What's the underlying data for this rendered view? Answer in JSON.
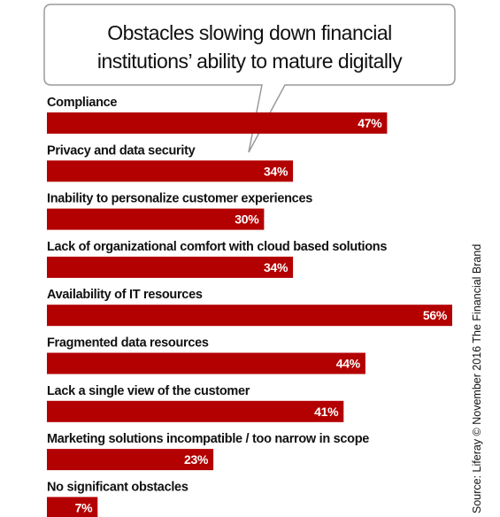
{
  "chart_data": {
    "type": "bar",
    "orientation": "horizontal",
    "title": "Obstacles slowing down financial institutions’ ability to mature digitally",
    "title_lines": [
      "Obstacles slowing down financial",
      "institutions’ ability to mature digitally"
    ],
    "categories": [
      "Compliance",
      "Privacy and data security",
      "Inability to personalize customer experiences",
      "Lack of organizational comfort with cloud based solutions",
      "Availability of IT resources",
      "Fragmented data resources",
      "Lack a single view of the customer",
      "Marketing solutions incompatible / too narrow in scope",
      "No significant obstacles"
    ],
    "values": [
      47,
      34,
      30,
      34,
      56,
      44,
      41,
      23,
      7
    ],
    "value_labels": [
      "47%",
      "34%",
      "30%",
      "34%",
      "56%",
      "44%",
      "41%",
      "23%",
      "7%"
    ],
    "unit": "%",
    "xlim": [
      0,
      56
    ],
    "grid": false,
    "legend": "none",
    "bar_color": "#b30000",
    "source": "Source: Liferay © November 2016 The Financial Brand"
  }
}
